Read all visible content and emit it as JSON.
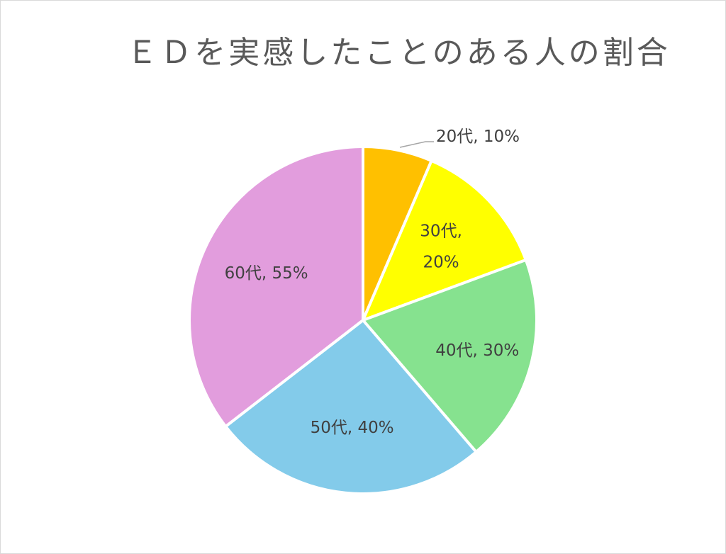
{
  "chart_data": {
    "type": "pie",
    "title": "ＥＤを実感したことのある人の割合",
    "categories": [
      "20代",
      "30代",
      "40代",
      "50代",
      "60代"
    ],
    "values": [
      10,
      20,
      30,
      40,
      55
    ],
    "labels": [
      "20代, 10%",
      "30代, 20%",
      "40代, 30%",
      "50代, 40%",
      "60代, 55%"
    ],
    "colors": [
      "#FFC000",
      "#FFFF00",
      "#86E28F",
      "#83CBEA",
      "#E29DDD"
    ],
    "start_angle_deg": 0,
    "direction": "clockwise"
  }
}
